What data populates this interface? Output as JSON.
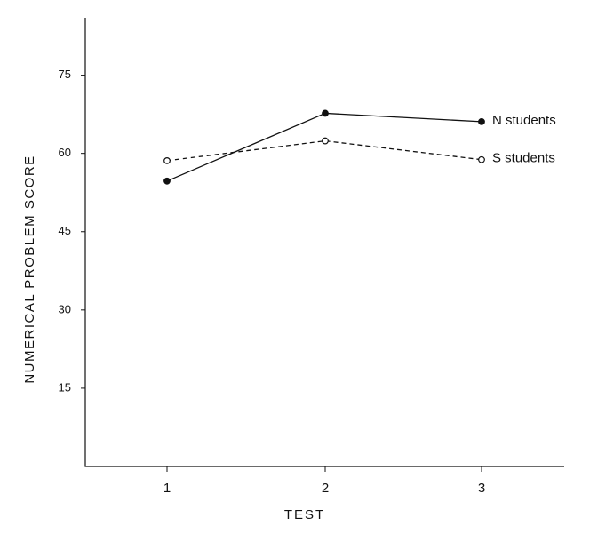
{
  "chart_data": {
    "type": "line",
    "x_label": "TEST",
    "y_label": "NUMERICAL PROBLEM SCORE",
    "categories": [
      "1",
      "2",
      "3"
    ],
    "series": [
      {
        "name": "N students",
        "color": "#111111",
        "line_style": "solid",
        "marker_fill": "filled",
        "values": [
          54.7,
          67.7,
          66.1
        ]
      },
      {
        "name": "S students",
        "color": "#111111",
        "line_style": "dashed",
        "marker_fill": "open",
        "values": [
          58.6,
          62.4,
          58.8
        ]
      }
    ],
    "ylim": [
      0,
      86
    ],
    "yticks": [
      15,
      30,
      45,
      60,
      75
    ],
    "grid": false,
    "legend": "line-end"
  }
}
